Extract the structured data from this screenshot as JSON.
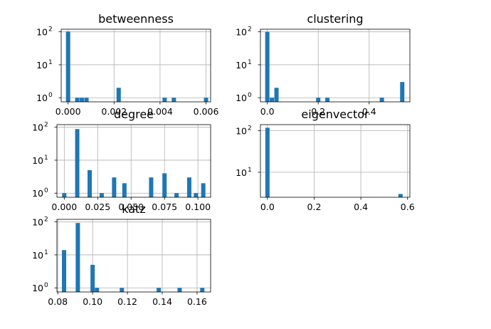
{
  "chart_data": [
    {
      "type": "bar",
      "title": "betweenness",
      "yscale": "log",
      "xlim": [
        -0.0003,
        0.0062
      ],
      "ylim": [
        0.75,
        120
      ],
      "xticks": [
        0.0,
        0.002,
        0.004,
        0.006
      ],
      "xtick_labels": [
        "0.000",
        "0.002",
        "0.004",
        "0.006"
      ],
      "yticks": [
        1,
        10,
        100
      ],
      "bars": [
        {
          "x": 0.0,
          "value": 102
        },
        {
          "x": 0.0004,
          "value": 1
        },
        {
          "x": 0.0006,
          "value": 1
        },
        {
          "x": 0.0008,
          "value": 1
        },
        {
          "x": 0.0022,
          "value": 2
        },
        {
          "x": 0.0042,
          "value": 1
        },
        {
          "x": 0.0046,
          "value": 1
        },
        {
          "x": 0.006,
          "value": 1
        }
      ]
    },
    {
      "type": "bar",
      "title": "clustering",
      "yscale": "log",
      "xlim": [
        -0.027,
        0.56
      ],
      "ylim": [
        0.75,
        120
      ],
      "xticks": [
        0.0,
        0.2,
        0.4
      ],
      "xtick_labels": [
        "0.0",
        "0.2",
        "0.4"
      ],
      "yticks": [
        1,
        10,
        100
      ],
      "bars": [
        {
          "x": 0.0,
          "value": 100
        },
        {
          "x": 0.018,
          "value": 1
        },
        {
          "x": 0.036,
          "value": 2
        },
        {
          "x": 0.2,
          "value": 1
        },
        {
          "x": 0.236,
          "value": 1
        },
        {
          "x": 0.45,
          "value": 1
        },
        {
          "x": 0.53,
          "value": 3
        }
      ]
    },
    {
      "type": "bar",
      "title": "degree",
      "yscale": "log",
      "xlim": [
        -0.0055,
        0.1095
      ],
      "ylim": [
        0.75,
        120
      ],
      "xticks": [
        0.0,
        0.025,
        0.05,
        0.075,
        0.1
      ],
      "xtick_labels": [
        "0.000",
        "0.025",
        "0.050",
        "0.075",
        "0.100"
      ],
      "yticks": [
        1,
        10,
        100
      ],
      "bars": [
        {
          "x": 0.0,
          "value": 1
        },
        {
          "x": 0.0097,
          "value": 88
        },
        {
          "x": 0.019,
          "value": 5
        },
        {
          "x": 0.028,
          "value": 1
        },
        {
          "x": 0.0373,
          "value": 3
        },
        {
          "x": 0.045,
          "value": 2
        },
        {
          "x": 0.065,
          "value": 3
        },
        {
          "x": 0.075,
          "value": 4
        },
        {
          "x": 0.084,
          "value": 1
        },
        {
          "x": 0.0935,
          "value": 3
        },
        {
          "x": 0.0985,
          "value": 1
        },
        {
          "x": 0.104,
          "value": 2
        }
      ]
    },
    {
      "type": "bar",
      "title": "eigenvector",
      "yscale": "log",
      "xlim": [
        -0.03,
        0.61
      ],
      "ylim": [
        2.5,
        140
      ],
      "xticks": [
        0.0,
        0.2,
        0.4,
        0.6
      ],
      "xtick_labels": [
        "0.0",
        "0.2",
        "0.4",
        "0.6"
      ],
      "yticks": [
        10,
        100
      ],
      "bars": [
        {
          "x": 0.0,
          "value": 118
        },
        {
          "x": 0.57,
          "value": 3
        }
      ]
    },
    {
      "type": "bar",
      "title": "katz",
      "yscale": "log",
      "xlim": [
        0.0795,
        0.1678
      ],
      "ylim": [
        0.75,
        120
      ],
      "xticks": [
        0.08,
        0.1,
        0.12,
        0.14,
        0.16
      ],
      "xtick_labels": [
        "0.08",
        "0.10",
        "0.12",
        "0.14",
        "0.16"
      ],
      "yticks": [
        1,
        10,
        100
      ],
      "bars": [
        {
          "x": 0.0836,
          "value": 14
        },
        {
          "x": 0.0915,
          "value": 93
        },
        {
          "x": 0.1,
          "value": 5
        },
        {
          "x": 0.1025,
          "value": 1
        },
        {
          "x": 0.1168,
          "value": 1
        },
        {
          "x": 0.138,
          "value": 1
        },
        {
          "x": 0.15,
          "value": 1
        },
        {
          "x": 0.163,
          "value": 1
        }
      ]
    }
  ],
  "style": {
    "bar_color": "#1f77b4",
    "grid": true,
    "grid_color": "#b0b0b0",
    "axis_color": "#000000"
  }
}
